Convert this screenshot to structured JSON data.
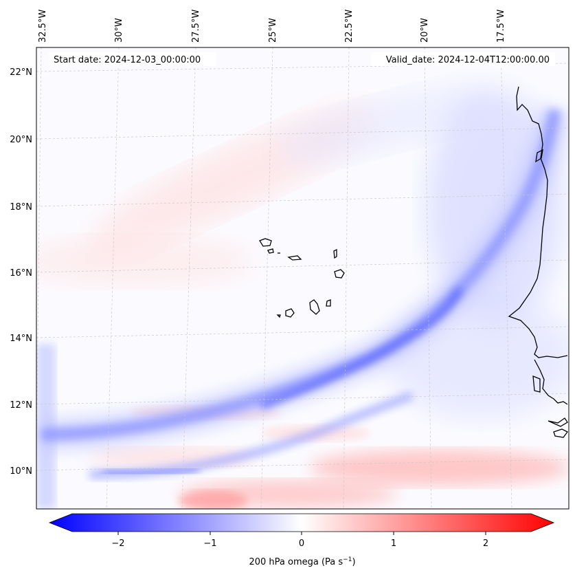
{
  "map": {
    "header": {
      "start_date": "Start date: 2024-12-03_00:00:00",
      "valid_date": "Valid_date: 2024-12-04T12:00:00.00"
    },
    "lon_labels": [
      "32.5°W",
      "30°W",
      "27.5°W",
      "25°W",
      "22.5°W",
      "20°W",
      "17.5°W"
    ],
    "lat_labels": [
      "22°N",
      "20°N",
      "18°N",
      "16°N",
      "14°N",
      "12°N",
      "10°N"
    ],
    "colorbar": {
      "ticks": [
        "−2",
        "−1",
        "0",
        "1",
        "2"
      ],
      "label": "200 hPa omega (Pa s",
      "label_sup": "−1",
      "label_end": ")",
      "range": [
        -2.5,
        2.5
      ],
      "colors": {
        "min": "#0000ff",
        "mid": "#ffffff",
        "max": "#ff0000"
      }
    }
  }
}
